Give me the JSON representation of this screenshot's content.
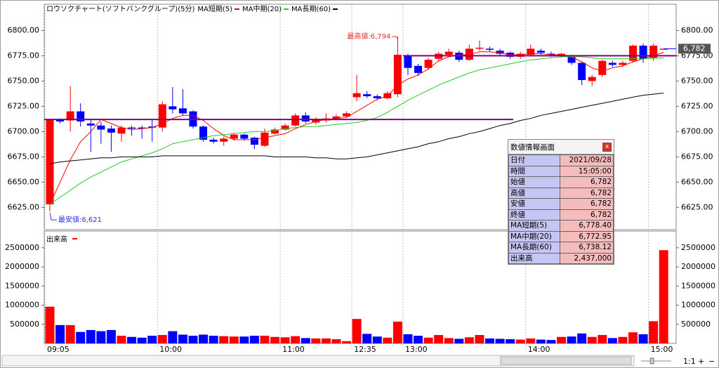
{
  "chart_data": [
    {
      "type": "candlestick",
      "title": "ロウソクチャート(ソフトバンクグループ)(5分)",
      "up_color": "#ff0000",
      "down_color": "#0000ff",
      "open": [
        6628,
        6712,
        6711,
        6720,
        6708,
        6706,
        6703,
        6698,
        6704,
        6704,
        6705,
        6704,
        6725,
        6723,
        6720,
        6705,
        6692,
        6690,
        6693,
        6697,
        6694,
        6686,
        6698,
        6702,
        6706,
        6716,
        6709,
        6711,
        6713,
        6715,
        6734,
        6737,
        6735,
        6733,
        6737,
        6775,
        6765,
        6763,
        6772,
        6776,
        6778,
        6771,
        6782,
        6782,
        6780,
        6778,
        6774,
        6776,
        6780,
        6777,
        6775,
        6774,
        6768,
        6750,
        6756,
        6768,
        6766,
        6770,
        6785,
        6773,
        6782
      ],
      "high": [
        6712,
        6713,
        6745,
        6728,
        6713,
        6710,
        6706,
        6706,
        6706,
        6706,
        6712,
        6730,
        6744,
        6742,
        6721,
        6706,
        6694,
        6695,
        6699,
        6698,
        6695,
        6703,
        6704,
        6708,
        6718,
        6719,
        6714,
        6718,
        6717,
        6720,
        6756,
        6740,
        6737,
        6740,
        6794,
        6777,
        6767,
        6773,
        6779,
        6782,
        6780,
        6786,
        6790,
        6784,
        6782,
        6779,
        6779,
        6786,
        6782,
        6779,
        6778,
        6776,
        6769,
        6756,
        6771,
        6770,
        6770,
        6786,
        6787,
        6787,
        6782
      ],
      "low": [
        6621,
        6708,
        6700,
        6705,
        6680,
        6688,
        6680,
        6690,
        6696,
        6693,
        6690,
        6700,
        6718,
        6716,
        6703,
        6690,
        6688,
        6686,
        6691,
        6691,
        6683,
        6685,
        6697,
        6701,
        6705,
        6708,
        6707,
        6709,
        6712,
        6714,
        6730,
        6733,
        6731,
        6732,
        6734,
        6756,
        6755,
        6761,
        6770,
        6774,
        6769,
        6770,
        6780,
        6779,
        6775,
        6772,
        6772,
        6775,
        6776,
        6774,
        6773,
        6766,
        6746,
        6745,
        6754,
        6764,
        6764,
        6768,
        6768,
        6770,
        6782
      ],
      "close": [
        6712,
        6710,
        6720,
        6710,
        6706,
        6702,
        6699,
        6704,
        6703,
        6703,
        6704,
        6727,
        6722,
        6718,
        6705,
        6692,
        6690,
        6693,
        6697,
        6693,
        6687,
        6699,
        6702,
        6706,
        6716,
        6710,
        6712,
        6713,
        6715,
        6718,
        6738,
        6735,
        6733,
        6738,
        6776,
        6763,
        6758,
        6771,
        6777,
        6779,
        6771,
        6782,
        6783,
        6781,
        6777,
        6774,
        6777,
        6782,
        6778,
        6776,
        6777,
        6768,
        6751,
        6754,
        6770,
        6766,
        6768,
        6785,
        6772,
        6785,
        6782
      ],
      "series": [
        {
          "name": "MA短期(5)",
          "color": "#ff0000",
          "values": [
            6628,
            6650,
            6672,
            6690,
            6700,
            6712,
            6708,
            6704,
            6702,
            6703,
            6704,
            6708,
            6713,
            6716,
            6716,
            6711,
            6703,
            6696,
            6692,
            6692,
            6692,
            6694,
            6696,
            6698,
            6703,
            6707,
            6710,
            6712,
            6713,
            6714,
            6720,
            6726,
            6732,
            6735,
            6746,
            6752,
            6756,
            6762,
            6770,
            6774,
            6776,
            6776,
            6779,
            6779,
            6778,
            6776,
            6776,
            6777,
            6777,
            6776,
            6776,
            6774,
            6769,
            6763,
            6760,
            6763,
            6765,
            6769,
            6772,
            6775,
            6778.4
          ]
        },
        {
          "name": "MA中期(20)",
          "color": "#22cc22",
          "values": [
            6628,
            6635,
            6642,
            6649,
            6655,
            6660,
            6665,
            6670,
            6673,
            6676,
            6679,
            6683,
            6688,
            6690,
            6692,
            6694,
            6696,
            6697,
            6698,
            6699,
            6700,
            6700,
            6701,
            6703,
            6704,
            6705,
            6705,
            6706,
            6707,
            6708,
            6709,
            6711,
            6714,
            6719,
            6725,
            6731,
            6736,
            6741,
            6746,
            6750,
            6754,
            6758,
            6761,
            6763,
            6765,
            6767,
            6769,
            6771,
            6772,
            6773,
            6774,
            6774,
            6774,
            6773,
            6772,
            6772,
            6772,
            6772,
            6772,
            6772.5,
            6772.95
          ]
        },
        {
          "name": "MA長期(60)",
          "color": "#000000",
          "values": [
            6668,
            6670,
            6671,
            6672,
            6673,
            6674,
            6674,
            6675,
            6675,
            6675,
            6675,
            6676,
            6676,
            6676,
            6676,
            6676,
            6676,
            6676,
            6676,
            6676,
            6676,
            6676,
            6675,
            6675,
            6675,
            6675,
            6674,
            6674,
            6673,
            6673,
            6674,
            6675,
            6677,
            6679,
            6681,
            6683,
            6685,
            6688,
            6690,
            6693,
            6695,
            6698,
            6700,
            6703,
            6706,
            6708,
            6711,
            6713,
            6716,
            6718,
            6720,
            6722,
            6724,
            6726,
            6728,
            6730,
            6732,
            6734,
            6736,
            6737,
            6738.12
          ]
        }
      ],
      "ylim": [
        6603,
        6826
      ],
      "yticks": [
        {
          "value": 6625,
          "label": "6625.00"
        },
        {
          "value": 6650,
          "label": "6650.00"
        },
        {
          "value": 6675,
          "label": "6675.00"
        },
        {
          "value": 6700,
          "label": "6700.00"
        },
        {
          "value": 6725,
          "label": "6725.00"
        },
        {
          "value": 6750,
          "label": "6750.00"
        },
        {
          "value": 6775,
          "label": "6775.00"
        },
        {
          "value": 6800,
          "label": "6800.00"
        }
      ],
      "annotations": [
        {
          "text": "最高値:6,794",
          "value": 6794
        },
        {
          "text": "最安値:6,621",
          "value": 6621
        }
      ],
      "reference_lines": [
        6712,
        6775
      ],
      "reference_color": "#800080",
      "last_price": {
        "value": 6782,
        "label": "6,782"
      }
    },
    {
      "type": "bar",
      "title": "出来高",
      "color": "#ff0000",
      "categories": [
        "09:05",
        null,
        null,
        null,
        null,
        null,
        null,
        null,
        null,
        null,
        null,
        "10:00",
        null,
        null,
        null,
        null,
        null,
        null,
        null,
        null,
        null,
        null,
        null,
        "11:00",
        null,
        null,
        null,
        null,
        null,
        null,
        "12:35",
        null,
        null,
        null,
        null,
        "13:00",
        null,
        null,
        null,
        null,
        null,
        null,
        null,
        null,
        null,
        null,
        null,
        "14:00",
        null,
        null,
        null,
        null,
        null,
        null,
        null,
        null,
        null,
        null,
        null,
        "15:00",
        null
      ],
      "values": [
        960000,
        480000,
        480000,
        300000,
        350000,
        320000,
        350000,
        200000,
        170000,
        150000,
        200000,
        220000,
        320000,
        230000,
        200000,
        230000,
        200000,
        190000,
        180000,
        180000,
        200000,
        200000,
        170000,
        160000,
        190000,
        140000,
        130000,
        130000,
        110000,
        60000,
        640000,
        250000,
        180000,
        150000,
        570000,
        240000,
        200000,
        150000,
        220000,
        140000,
        120000,
        160000,
        220000,
        130000,
        120000,
        110000,
        100000,
        130000,
        100000,
        90000,
        170000,
        180000,
        260000,
        170000,
        220000,
        140000,
        170000,
        290000,
        240000,
        580000,
        2437000
      ],
      "ylim": [
        0,
        2900000
      ],
      "yticks": [
        500000,
        1000000,
        1500000,
        2000000,
        2500000
      ],
      "grid": "x"
    }
  ],
  "info_panel": {
    "title": "数値情報画面",
    "close": "x",
    "rows": [
      [
        "日付",
        "2021/09/28"
      ],
      [
        "時間",
        "15:05:00"
      ],
      [
        "始値",
        "6,782"
      ],
      [
        "高値",
        "6,782"
      ],
      [
        "安値",
        "6,782"
      ],
      [
        "終値",
        "6,782"
      ],
      [
        "MA短期(5)",
        "6,778.40"
      ],
      [
        "MA中期(20)",
        "6,772.95"
      ],
      [
        "MA長期(60)",
        "6,738.12"
      ],
      [
        "出来高",
        "2,437,000"
      ]
    ]
  },
  "controls": {
    "zoom": "1:1",
    "plus": "+",
    "minus": "−"
  }
}
